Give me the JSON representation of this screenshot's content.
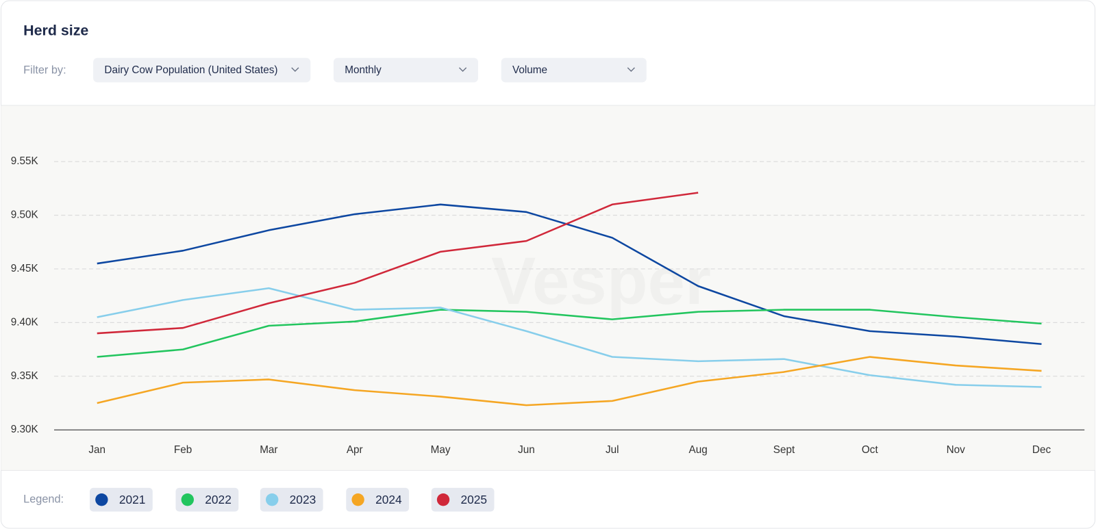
{
  "header": {
    "title": "Herd size",
    "filter_label": "Filter by:",
    "filters": [
      "Dairy Cow Population (United States)",
      "Monthly",
      "Volume"
    ]
  },
  "chart_data": {
    "type": "line",
    "watermark": "Vesper",
    "categories": [
      "Jan",
      "Feb",
      "Mar",
      "Apr",
      "May",
      "Jun",
      "Jul",
      "Aug",
      "Sept",
      "Oct",
      "Nov",
      "Dec"
    ],
    "series": [
      {
        "name": "2021",
        "color": "#0d47a1",
        "values": [
          9455,
          9467,
          9486,
          9501,
          9510,
          9503,
          9479,
          9434,
          9406,
          9392,
          9387,
          9380
        ]
      },
      {
        "name": "2022",
        "color": "#22c55e",
        "values": [
          9368,
          9375,
          9397,
          9401,
          9412,
          9410,
          9403,
          9410,
          9412,
          9412,
          9405,
          9399
        ]
      },
      {
        "name": "2023",
        "color": "#87ceeb",
        "values": [
          9405,
          9421,
          9432,
          9412,
          9414,
          9392,
          9368,
          9364,
          9366,
          9351,
          9342,
          9340
        ]
      },
      {
        "name": "2024",
        "color": "#f5a623",
        "values": [
          9325,
          9344,
          9347,
          9337,
          9331,
          9323,
          9327,
          9345,
          9354,
          9368,
          9360,
          9355
        ]
      },
      {
        "name": "2025",
        "color": "#d0283a",
        "values": [
          9390,
          9395,
          9418,
          9437,
          9466,
          9476,
          9510,
          9521,
          null,
          null,
          null,
          null
        ]
      }
    ],
    "ylim": [
      9300,
      9590
    ],
    "yticks": [
      {
        "value": 9300,
        "label": "9.30K"
      },
      {
        "value": 9350,
        "label": "9.35K"
      },
      {
        "value": 9400,
        "label": "9.40K"
      },
      {
        "value": 9450,
        "label": "9.45K"
      },
      {
        "value": 9500,
        "label": "9.50K"
      },
      {
        "value": 9550,
        "label": "9.55K"
      }
    ],
    "grid": true
  },
  "legend": {
    "label": "Legend:"
  }
}
